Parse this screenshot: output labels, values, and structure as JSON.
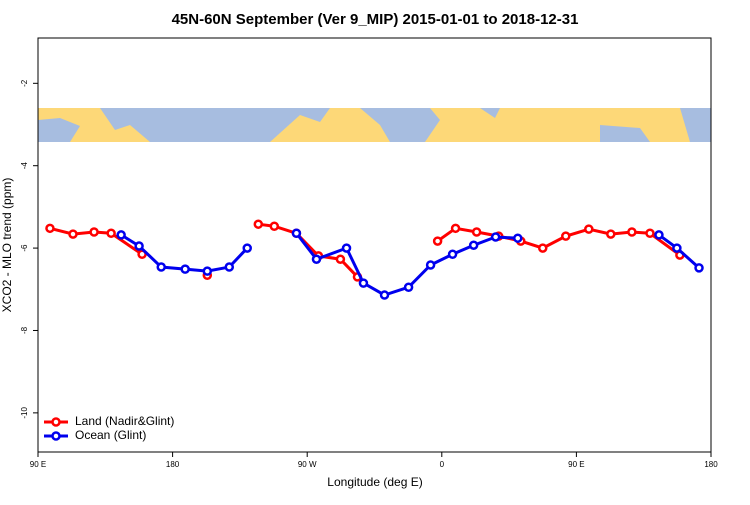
{
  "chart_data": {
    "type": "line",
    "title": "45N-60N September (Ver 9_MIP)   2015-01-01 to 2018-12-31",
    "x_label": "Longitude (deg E)",
    "y_label": "XCO2 - MLO trend (ppm)",
    "xlim": [
      90,
      540
    ],
    "ylim": [
      -10.95,
      -0.9
    ],
    "xticks": [
      {
        "value": 90,
        "label": "90 E"
      },
      180,
      {
        "value": 270,
        "label": "90 W"
      },
      {
        "value": 360,
        "label": "0"
      },
      {
        "value": 450,
        "label": "90 E"
      },
      {
        "value": 540,
        "label": "180"
      }
    ],
    "yticks": [
      -2,
      -4,
      -6,
      -8,
      -10
    ],
    "legend": "bottom-left",
    "series": [
      {
        "name": "Land (Nadir&Glint)",
        "color": "#ff0000",
        "x": [
          98.0,
          113.4,
          127.5,
          138.9,
          159.6,
          null,
          203.2,
          null,
          237.3,
          248.0,
          262.8,
          277.5,
          292.2,
          303.6,
          null,
          357.2,
          369.2,
          383.3,
          398.0,
          412.8,
          427.5,
          442.9,
          458.3,
          473.0,
          487.1,
          499.2,
          519.2
        ],
        "values": [
          -5.52,
          -5.66,
          -5.61,
          -5.64,
          -6.15,
          null,
          -6.66,
          null,
          -5.42,
          -5.47,
          -5.64,
          -6.19,
          -6.27,
          -6.7,
          null,
          -5.83,
          -5.52,
          -5.61,
          -5.71,
          -5.83,
          -6.0,
          -5.71,
          -5.54,
          -5.66,
          -5.61,
          -5.64,
          -6.17
        ]
      },
      {
        "name": "Ocean (Glint)",
        "color": "#0000ee",
        "x": [
          145.6,
          157.6,
          172.4,
          188.4,
          203.2,
          217.9,
          229.9,
          null,
          262.8,
          276.2,
          296.3,
          307.6,
          321.7,
          337.8,
          352.5,
          367.2,
          381.3,
          396.0,
          410.8,
          null,
          505.2,
          517.2,
          532.0
        ],
        "values": [
          -5.68,
          -5.95,
          -6.46,
          -6.51,
          -6.56,
          -6.46,
          -6.0,
          null,
          -5.64,
          -6.27,
          -6.0,
          -6.85,
          -7.14,
          -6.95,
          -6.41,
          -6.15,
          -5.93,
          -5.73,
          -5.76,
          null,
          -5.68,
          -6.0,
          -6.48
        ]
      }
    ]
  }
}
